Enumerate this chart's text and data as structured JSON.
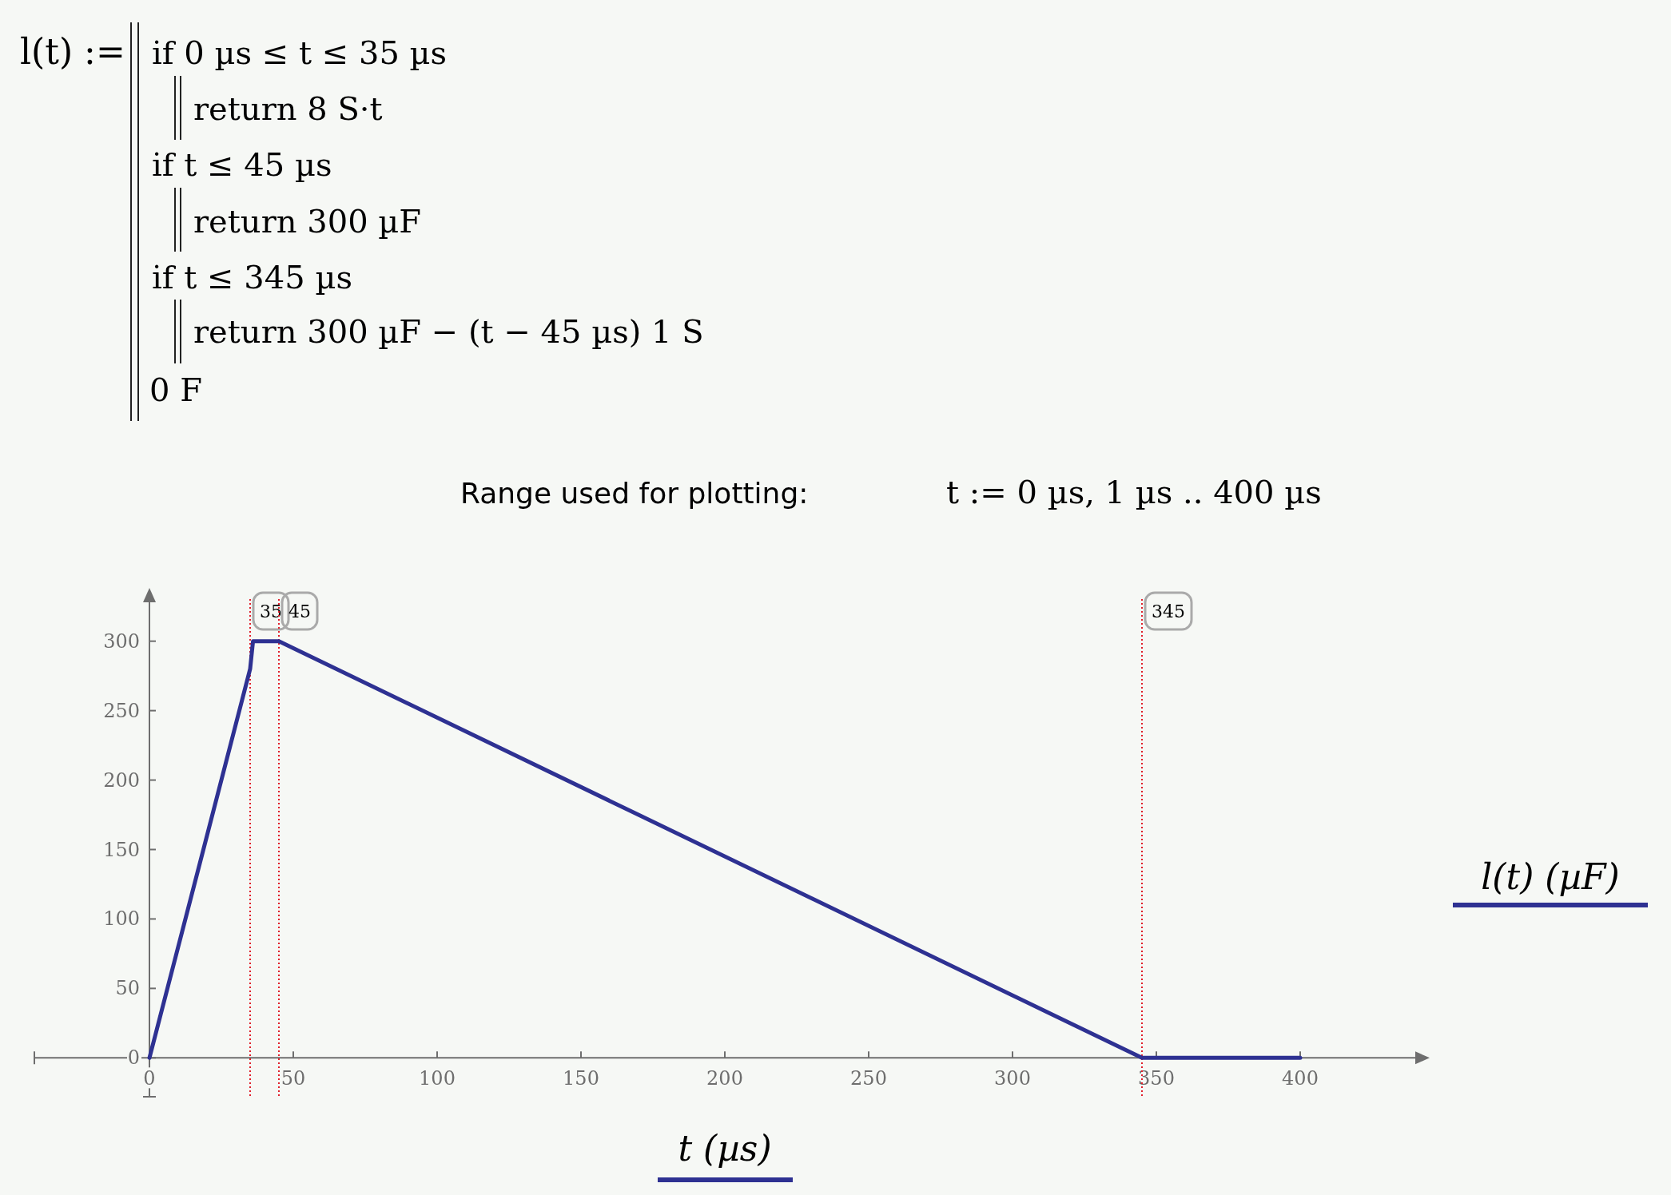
{
  "chart_data": {
    "type": "line",
    "xlabel": "t (µs)",
    "ylabel": "l(t) (µF)",
    "annotations": [
      "l(t) :=",
      "if 0 µs ≤ t ≤ 35 µs",
      "return 8 S·t",
      "if t ≤ 45 µs",
      "return 300 µF",
      "if t ≤ 345 µs",
      "return 300 µF − (t − 45 µs) 1 S",
      "0 F",
      "Range used for plotting:",
      "t := 0 µs, 1 µs .. 400 µs"
    ],
    "x": [
      0,
      35,
      36,
      45,
      345,
      400
    ],
    "series": [
      {
        "color": "#2e3192",
        "values": [
          0,
          280,
          300,
          300,
          0,
          0
        ]
      }
    ],
    "xlim": [
      -40,
      440
    ],
    "ylim": [
      -28,
      328
    ],
    "xticks": [
      0,
      50,
      100,
      150,
      200,
      250,
      300,
      350,
      400
    ],
    "yticks": [
      0,
      50,
      100,
      150,
      200,
      250,
      300
    ],
    "grid": false,
    "marker": "none",
    "line_style": "solid",
    "ref_lines": [
      {
        "axis": "x",
        "value": 35,
        "label": "35",
        "color": "#e0202a",
        "line_style": "dotted"
      },
      {
        "axis": "x",
        "value": 45,
        "label": "45",
        "color": "#e0202a",
        "line_style": "dotted"
      },
      {
        "axis": "x",
        "value": 345,
        "label": "345",
        "color": "#e0202a",
        "line_style": "dotted"
      }
    ]
  }
}
